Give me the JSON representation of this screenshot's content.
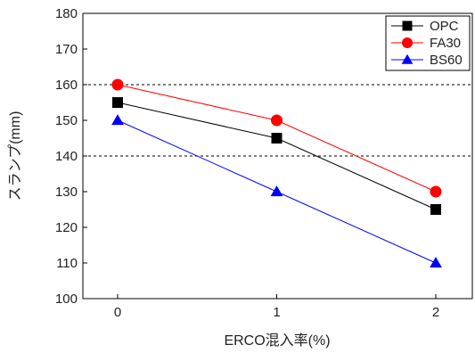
{
  "chart_data": {
    "type": "line",
    "xlabel": "ERCO混入率(%)",
    "ylabel": "スランプ(mm)",
    "x": [
      0,
      1,
      2
    ],
    "xticks": [
      "0",
      "1",
      "2"
    ],
    "ylim": [
      100,
      180
    ],
    "yticks": [
      "100",
      "110",
      "120",
      "130",
      "140",
      "150",
      "160",
      "170",
      "180"
    ],
    "reference_lines": [
      140,
      160
    ],
    "grid": false,
    "legend_position": "top-right",
    "series": [
      {
        "name": "OPC",
        "values": [
          155,
          145,
          125
        ],
        "color": "#000000",
        "marker": "square"
      },
      {
        "name": "FA30",
        "values": [
          160,
          150,
          130
        ],
        "color": "#ff0000",
        "marker": "circle"
      },
      {
        "name": "BS60",
        "values": [
          150,
          130,
          110
        ],
        "color": "#0000ff",
        "marker": "triangle"
      }
    ]
  }
}
